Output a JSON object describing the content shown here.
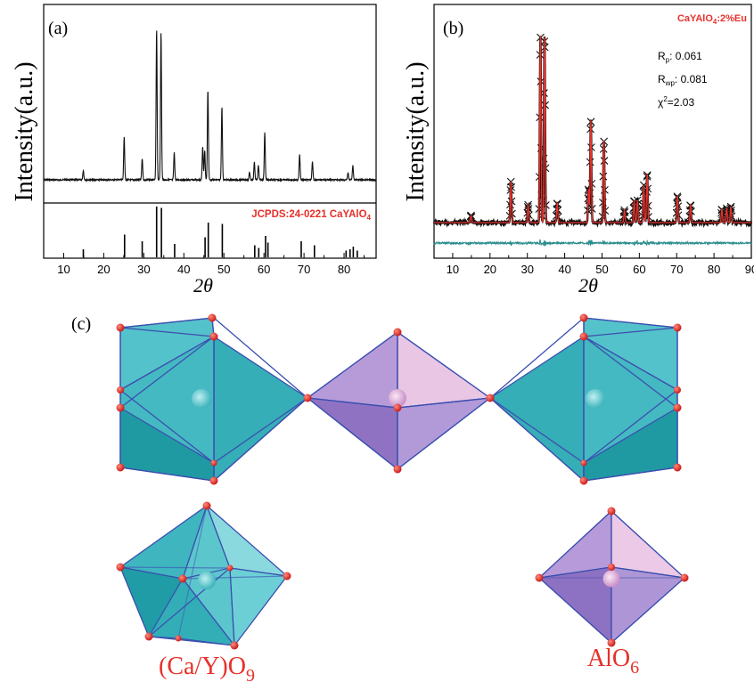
{
  "panel_a": {
    "label": "(a)",
    "ylabel": "Intensity(a.u.)",
    "xlabel": "2θ",
    "reference_label": "JCPDS:24-0221 CaYAlO",
    "reference_label_sub": "4"
  },
  "panel_b": {
    "label": "(b)",
    "ylabel": "Intensity(a.u.)",
    "xlabel": "2θ",
    "sample": "CaYAlO",
    "sample_sub": "4",
    "sample_tail": ":2%Eu",
    "rp_label": "R",
    "rp_sub": "p",
    "rp_value": ": 0.061",
    "rwp_label": "R",
    "rwp_sub": "wp",
    "rwp_value": ": 0.081",
    "chi_label": "χ",
    "chi_sup": "2",
    "chi_value": "=2.03"
  },
  "panel_c": {
    "label": "(c)",
    "polyhedron_1": "(Ca/Y)O",
    "polyhedron_1_sub": "9",
    "polyhedron_2": "AlO",
    "polyhedron_2_sub": "6"
  },
  "colors": {
    "pattern": "#111111",
    "reference_label": "#e8302a",
    "fit": "#e8302a",
    "difference": "#2a8c8c",
    "caYO9": "#3bb8c0",
    "alO6": "#a98fd0",
    "oxygen": "#d81f1f"
  },
  "chart_data": [
    {
      "type": "line",
      "panel": "a",
      "xlim": [
        5,
        88
      ],
      "x_ticks": [
        10,
        20,
        30,
        40,
        50,
        60,
        70,
        80
      ],
      "series": [
        {
          "name": "",
          "x": [
            14.9,
            25.1,
            29.6,
            33.2,
            34.3,
            37.6,
            44.7,
            45.2,
            46.0,
            49.5,
            56.4,
            57.6,
            58.6,
            60.2,
            68.9,
            72.1,
            81.0,
            82.2
          ],
          "y": [
            8,
            37,
            18,
            128,
            125,
            23,
            28,
            25,
            77,
            62,
            6,
            15,
            12,
            40,
            22,
            15,
            6,
            12
          ]
        },
        {
          "name": "",
          "x": [
            14.9,
            25.2,
            29.6,
            33.2,
            34.4,
            37.7,
            45.3,
            46.1,
            49.6,
            57.7,
            58.7,
            60.4,
            61.0,
            69.3,
            72.6,
            80.5,
            81.5,
            82.3,
            83.3
          ],
          "y": [
            6,
            17,
            12,
            38,
            37,
            10,
            15,
            26,
            25,
            9,
            7,
            16,
            11,
            12,
            9,
            5,
            6,
            8,
            5
          ]
        }
      ]
    },
    {
      "type": "line",
      "panel": "b",
      "xlim": [
        5,
        90
      ],
      "x_ticks": [
        10,
        20,
        30,
        40,
        50,
        60,
        70,
        80,
        90
      ],
      "series": [
        {
          "name": "",
          "x": [
            14.9,
            25.6,
            30.2,
            33.5,
            34.6,
            38.0,
            46.4,
            47.0,
            50.5,
            56.0,
            58.6,
            59.5,
            61.2,
            62.1,
            70.2,
            73.7,
            82.1,
            83.4,
            84.5
          ],
          "y": [
            8,
            46,
            20,
            210,
            210,
            22,
            38,
            115,
            92,
            14,
            25,
            25,
            42,
            55,
            30,
            20,
            15,
            16,
            18
          ]
        }
      ]
    }
  ]
}
